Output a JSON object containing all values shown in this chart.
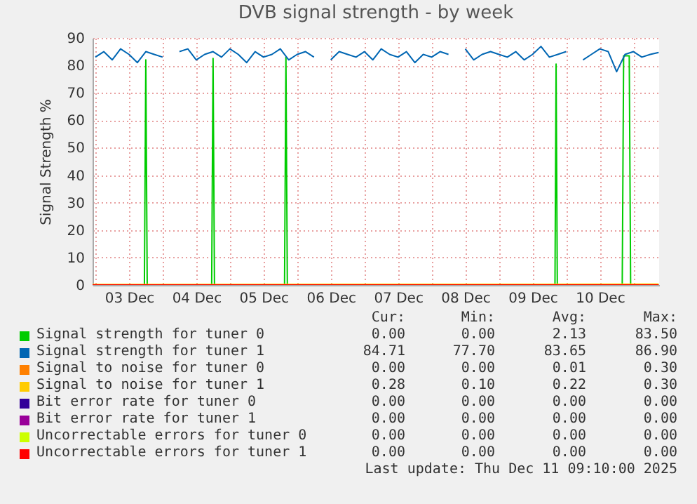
{
  "chart_data": {
    "type": "line",
    "title": "DVB signal strength - by week",
    "ylabel": "Signal Strength %",
    "xlim": [
      "2025-12-02T23:00",
      "2025-12-11T09:10"
    ],
    "xticks": [
      {
        "value": "2025-12-03T00:00",
        "label": null
      },
      {
        "value": "2025-12-03T12:00",
        "label": "03 Dec"
      },
      {
        "value": "2025-12-04T00:00",
        "label": null
      },
      {
        "value": "2025-12-04T12:00",
        "label": "04 Dec"
      },
      {
        "value": "2025-12-05T00:00",
        "label": null
      },
      {
        "value": "2025-12-05T12:00",
        "label": "05 Dec"
      },
      {
        "value": "2025-12-06T00:00",
        "label": null
      },
      {
        "value": "2025-12-06T12:00",
        "label": "06 Dec"
      },
      {
        "value": "2025-12-07T00:00",
        "label": null
      },
      {
        "value": "2025-12-07T12:00",
        "label": "07 Dec"
      },
      {
        "value": "2025-12-08T00:00",
        "label": null
      },
      {
        "value": "2025-12-08T12:00",
        "label": "08 Dec"
      },
      {
        "value": "2025-12-09T00:00",
        "label": null
      },
      {
        "value": "2025-12-09T12:00",
        "label": "09 Dec"
      },
      {
        "value": "2025-12-10T00:00",
        "label": null
      },
      {
        "value": "2025-12-10T12:00",
        "label": "10 Dec"
      },
      {
        "value": "2025-12-11T00:00",
        "label": null
      }
    ],
    "ylim": [
      0,
      90
    ],
    "yticks": [
      0,
      10,
      20,
      30,
      40,
      50,
      60,
      70,
      80,
      90
    ],
    "grid": true,
    "legend": "bottom",
    "series": [
      {
        "name": "Signal strength for tuner 0",
        "color": "#00cc00",
        "x": [
          "2025-12-02T23:00",
          "2025-12-03T17:30",
          "2025-12-03T18:00",
          "2025-12-03T18:30",
          "2025-12-04T17:30",
          "2025-12-04T18:00",
          "2025-12-04T18:30",
          "2025-12-05T19:30",
          "2025-12-05T20:00",
          "2025-12-05T20:30",
          "2025-12-09T20:00",
          "2025-12-09T20:24",
          "2025-12-09T20:50",
          "2025-12-10T20:00",
          "2025-12-10T20:30",
          "2025-12-10T22:30",
          "2025-12-10T23:00",
          "2025-12-11T09:00"
        ],
        "values": [
          0,
          0,
          82,
          0,
          0,
          82.5,
          0,
          0,
          83,
          0,
          0,
          80.5,
          0,
          0,
          83.5,
          83.5,
          0,
          0
        ]
      },
      {
        "name": "Signal strength for tuner 1",
        "color": "#0066b3",
        "x": [
          "2025-12-03T00:00",
          "2025-12-03T03:00",
          "2025-12-03T06:00",
          "2025-12-03T09:00",
          "2025-12-03T12:00",
          "2025-12-03T15:00",
          "2025-12-03T18:00",
          "2025-12-03T21:00",
          "2025-12-04T00:00",
          "2025-12-04T03:00",
          "2025-12-04T06:00",
          "2025-12-04T09:00",
          "2025-12-04T12:00",
          "2025-12-04T15:00",
          "2025-12-04T18:00",
          "2025-12-04T21:00",
          "2025-12-05T00:00",
          "2025-12-05T03:00",
          "2025-12-05T06:00",
          "2025-12-05T09:00",
          "2025-12-05T12:00",
          "2025-12-05T15:00",
          "2025-12-05T18:00",
          "2025-12-05T21:00",
          "2025-12-06T00:00",
          "2025-12-06T03:00",
          "2025-12-06T06:00",
          "2025-12-06T09:00",
          "2025-12-06T12:00",
          "2025-12-06T15:00",
          "2025-12-06T18:00",
          "2025-12-06T21:00",
          "2025-12-07T00:00",
          "2025-12-07T03:00",
          "2025-12-07T06:00",
          "2025-12-07T09:00",
          "2025-12-07T12:00",
          "2025-12-07T15:00",
          "2025-12-07T18:00",
          "2025-12-07T21:00",
          "2025-12-08T00:00",
          "2025-12-08T03:00",
          "2025-12-08T06:00",
          "2025-12-08T09:00",
          "2025-12-08T12:00",
          "2025-12-08T15:00",
          "2025-12-08T18:00",
          "2025-12-08T21:00",
          "2025-12-09T00:00",
          "2025-12-09T03:00",
          "2025-12-09T06:00",
          "2025-12-09T09:00",
          "2025-12-09T12:00",
          "2025-12-09T15:00",
          "2025-12-09T18:00",
          "2025-12-09T21:00",
          "2025-12-10T00:00",
          "2025-12-10T03:00",
          "2025-12-10T06:00",
          "2025-12-10T09:00",
          "2025-12-10T12:00",
          "2025-12-10T15:00",
          "2025-12-10T18:00",
          "2025-12-10T21:00",
          "2025-12-11T00:00",
          "2025-12-11T03:00",
          "2025-12-11T06:00",
          "2025-12-11T09:00"
        ],
        "values": [
          83,
          85,
          82,
          86,
          84,
          81,
          85,
          84,
          83,
          null,
          85,
          86,
          82,
          84,
          85,
          83,
          86,
          84,
          81,
          85,
          83,
          84,
          86,
          82,
          84,
          85,
          83,
          null,
          82,
          85,
          84,
          83,
          85,
          82,
          86,
          84,
          83,
          85,
          81,
          84,
          83,
          85,
          84,
          null,
          86,
          82,
          84,
          85,
          84,
          83,
          85,
          82,
          84,
          86.9,
          83,
          84,
          85,
          null,
          82,
          84,
          86,
          85,
          77.7,
          84,
          85,
          83,
          84,
          84.7
        ]
      },
      {
        "name": "Signal to noise for tuner 0",
        "color": "#ff8000"
      },
      {
        "name": "Signal to noise for tuner 1",
        "color": "#ffcc00",
        "x": [
          "2025-12-02T23:00",
          "2025-12-11T09:00"
        ],
        "values": [
          0.2,
          0.3
        ]
      },
      {
        "name": "Bit error rate for tuner 0",
        "color": "#330099"
      },
      {
        "name": "Bit error rate for tuner 1",
        "color": "#990099"
      },
      {
        "name": "Uncorrectable errors for tuner 0",
        "color": "#ccff00"
      },
      {
        "name": "Uncorrectable errors for tuner 1",
        "color": "#ff0000",
        "x": [
          "2025-12-02T23:00",
          "2025-12-11T09:00"
        ],
        "values": [
          0,
          0
        ]
      }
    ],
    "annotations": [
      "Cur:",
      "Min:",
      "Avg:",
      "Max:",
      "0.00",
      "0.00",
      "2.13",
      "83.50",
      "84.71",
      "77.70",
      "83.65",
      "86.90",
      "0.00",
      "0.00",
      "0.01",
      "0.30",
      "0.28",
      "0.10",
      "0.22",
      "0.30",
      "0.00",
      "0.00",
      "0.00",
      "0.00",
      "0.00",
      "0.00",
      "0.00",
      "0.00",
      "0.00",
      "0.00",
      "0.00",
      "0.00",
      "0.00",
      "0.00",
      "0.00",
      "0.00",
      "Last update: Thu Dec 11 09:10:00 2025"
    ]
  }
}
